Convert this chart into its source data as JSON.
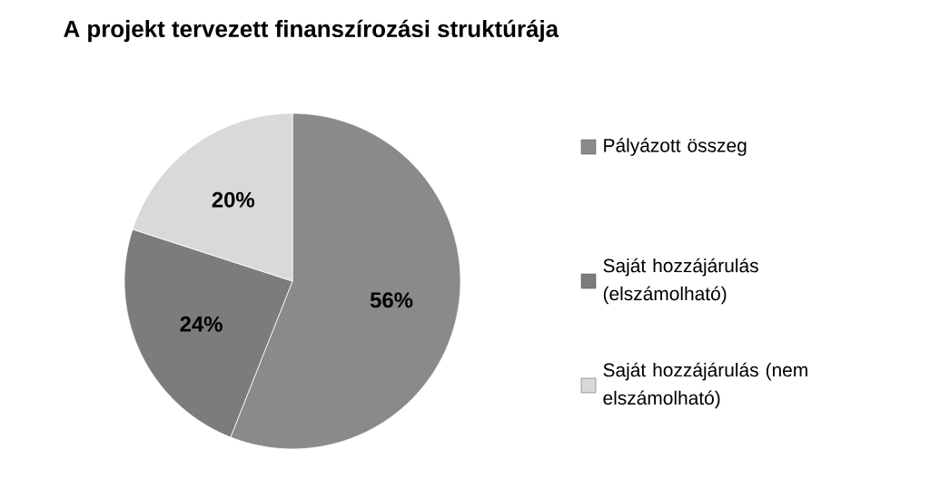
{
  "chart_data": {
    "type": "pie",
    "title": "A projekt tervezett finanszírozási struktúrája",
    "categories": [
      "Pályázott összeg",
      "Saját hozzájárulás (elszámolható)",
      "Saját hozzájárulás (nem elszámolható)"
    ],
    "values": [
      56,
      24,
      20
    ],
    "colors": [
      "#8a8a8a",
      "#7c7c7c",
      "#d9d9d9"
    ],
    "value_labels": [
      "56%",
      "24%",
      "20%"
    ],
    "legend": "right"
  }
}
